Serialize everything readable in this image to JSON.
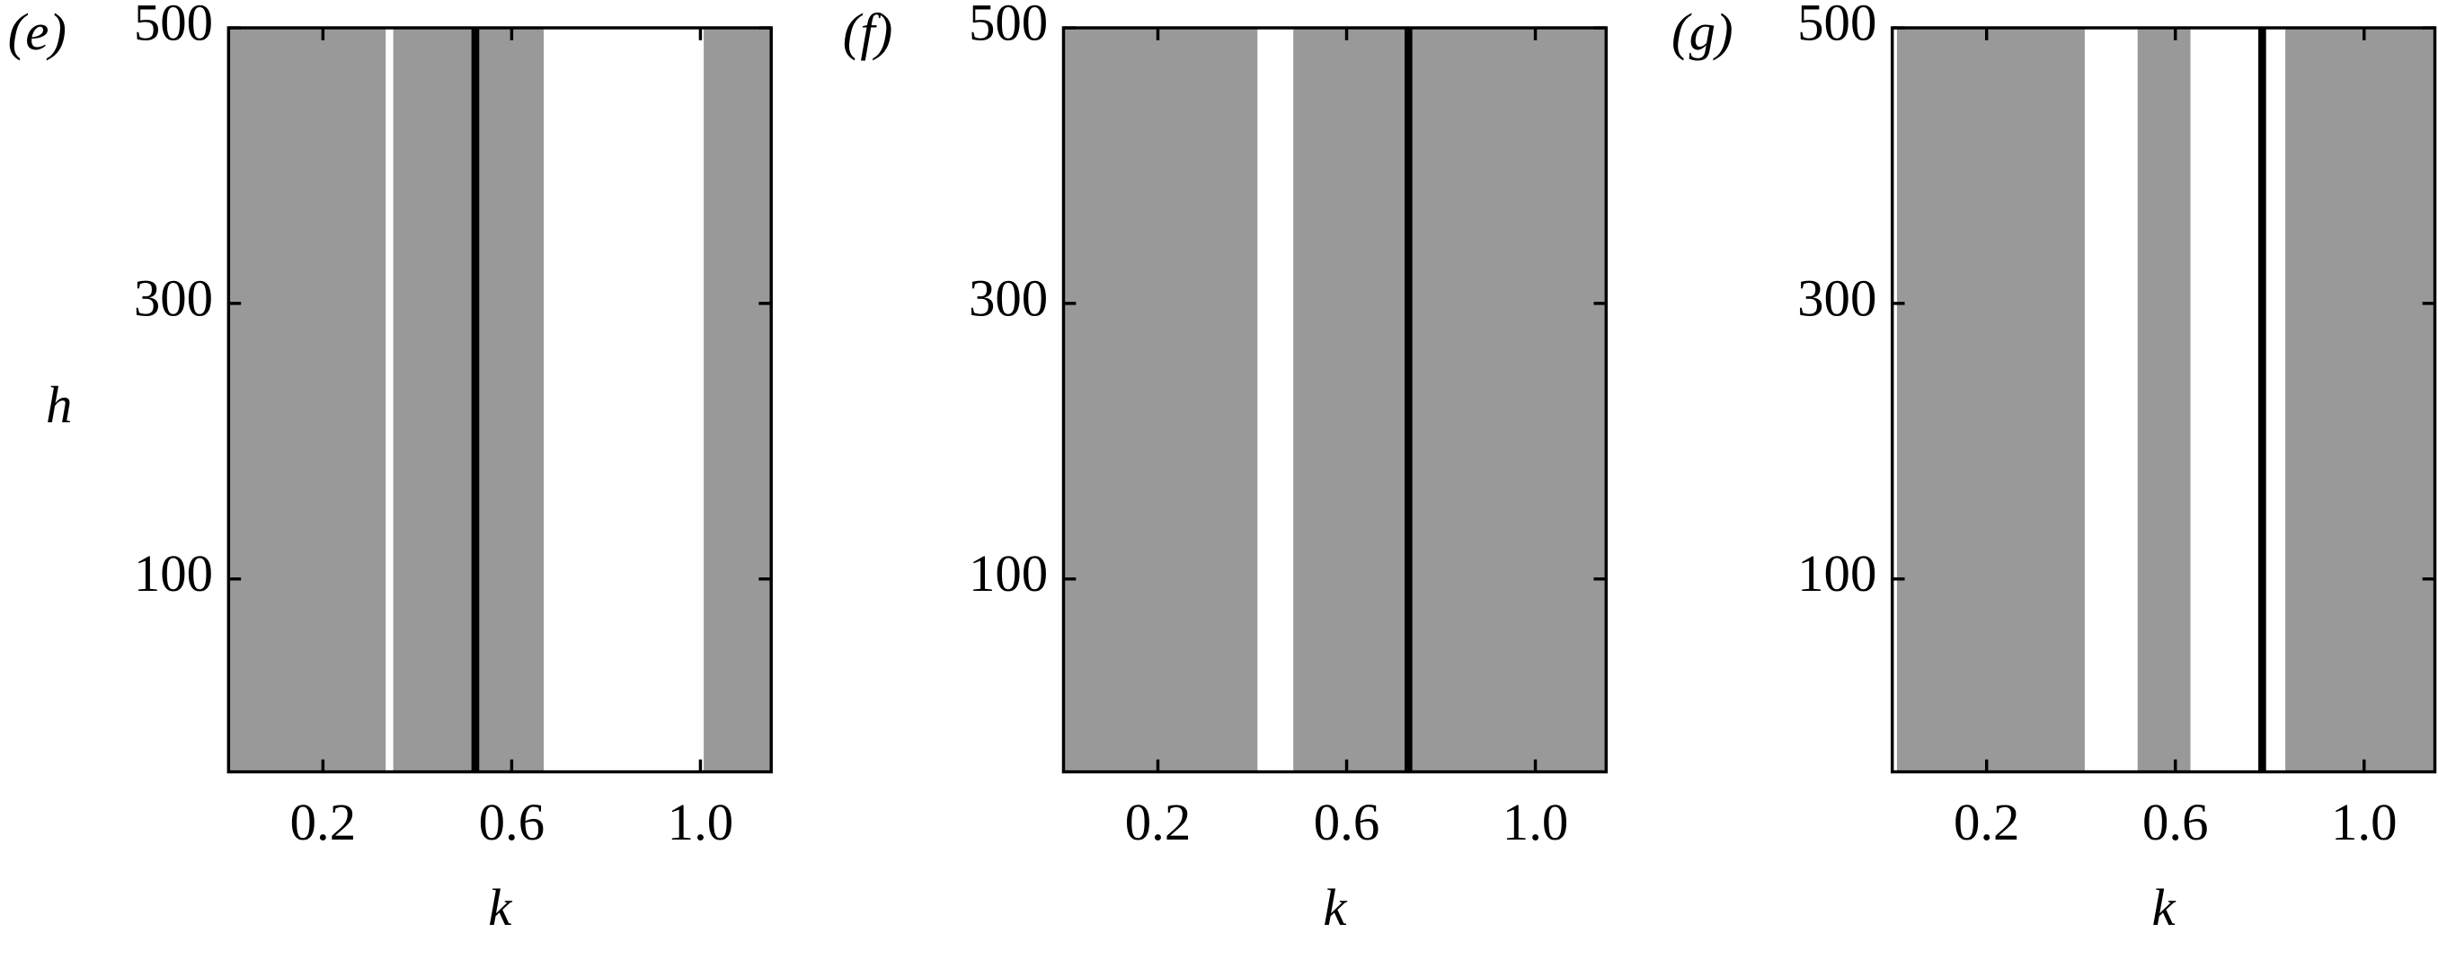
{
  "chart_data": [
    {
      "type": "span",
      "label": "(e)",
      "xlabel": "k",
      "ylabel": "h",
      "xlim": [
        0,
        1.15
      ],
      "ylim": [
        -40,
        500
      ],
      "xticks": [
        0.2,
        0.6,
        {
          "value": 1.0,
          "label": "1.0"
        }
      ],
      "yticks": [
        100,
        300,
        500
      ],
      "region_color": "#999999",
      "regions": [
        [
          0,
          0.333
        ],
        [
          0.349,
          0.668
        ],
        [
          1.007,
          1.15
        ]
      ],
      "line_k": 0.523
    },
    {
      "type": "span",
      "label": "(f)",
      "xlabel": "k",
      "xlim": [
        0,
        1.15
      ],
      "ylim": [
        -40,
        500
      ],
      "xticks": [
        0.2,
        0.6,
        {
          "value": 1.0,
          "label": "1.0"
        }
      ],
      "yticks": [
        100,
        300,
        500
      ],
      "region_color": "#999999",
      "regions": [
        [
          0,
          0.411
        ],
        [
          0.487,
          1.15
        ]
      ],
      "line_k": 0.731
    },
    {
      "type": "span",
      "label": "(g)",
      "xlabel": "k",
      "xlim": [
        0,
        1.15
      ],
      "ylim": [
        -40,
        500
      ],
      "xticks": [
        0.2,
        0.6,
        {
          "value": 1.0,
          "label": "1.0"
        }
      ],
      "yticks": [
        100,
        300,
        500
      ],
      "region_color": "#999999",
      "regions": [
        [
          0.01,
          0.408
        ],
        [
          0.52,
          0.632
        ],
        [
          0.833,
          1.15
        ]
      ],
      "line_k": 0.784
    }
  ]
}
